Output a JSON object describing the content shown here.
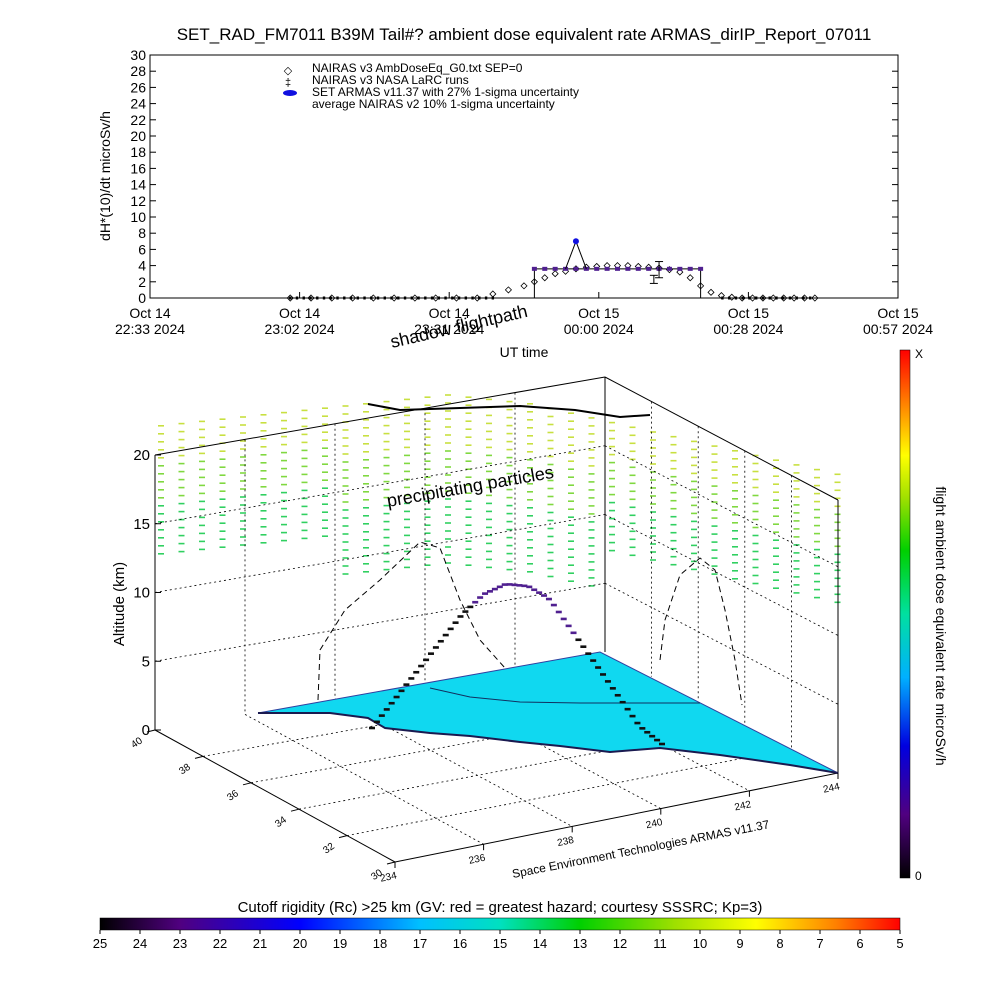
{
  "title": "SET_RAD_FM7011  B39M Tail#? ambient dose equivalent rate ARMAS_dirIP_Report_07011",
  "colors": {
    "armas": "#1010e0",
    "armas_fill": "#502090",
    "ocean": "#10d8f0",
    "aurora": "#70d040"
  },
  "chart_data": [
    {
      "type": "line",
      "title": "",
      "xlabel": "UT time",
      "ylabel": "dH*(10)/dt microSv/h",
      "ylim": [
        0,
        30
      ],
      "yticks": [
        "0",
        "2",
        "4",
        "6",
        "8",
        "10",
        "12",
        "14",
        "16",
        "18",
        "20",
        "22",
        "24",
        "26",
        "28",
        "30"
      ],
      "x_range_minutes": [
        0,
        144
      ],
      "x_tick_labels": [
        {
          "line1": "Oct 14",
          "line2": "22:33 2024"
        },
        {
          "line1": "Oct 14",
          "line2": "23:02 2024"
        },
        {
          "line1": "Oct 14",
          "line2": "23:31 2024"
        },
        {
          "line1": "Oct 15",
          "line2": "00:00 2024"
        },
        {
          "line1": "Oct 15",
          "line2": "00:28 2024"
        },
        {
          "line1": "Oct 15",
          "line2": "00:57 2024"
        }
      ],
      "legend": [
        {
          "symbol": "◇",
          "label": "NAIRAS v3 AmbDoseEq_G0.txt SEP=0"
        },
        {
          "symbol": "‡",
          "label": "NAIRAS v3 NASA LaRC runs"
        },
        {
          "symbol": "●",
          "label": "SET ARMAS v11.37 with 27% 1-sigma uncertainty"
        },
        {
          "symbol": "",
          "label": "average NAIRAS v2 10% 1-sigma uncertainty"
        }
      ],
      "series": [
        {
          "name": "NAIRAS v3 AmbDoseEq_G0.txt SEP=0",
          "marker": "diamond",
          "x": [
            27,
            31,
            35,
            39,
            43,
            47,
            51,
            55,
            59,
            63,
            66,
            69,
            72,
            74,
            76,
            78,
            80,
            82,
            84,
            86,
            88,
            90,
            92,
            94,
            96,
            98,
            100,
            102,
            104,
            106,
            108,
            110,
            112,
            114,
            116,
            118,
            120,
            122,
            124,
            126,
            128
          ],
          "y": [
            0,
            0,
            0,
            0,
            0,
            0,
            0,
            0,
            0,
            0,
            0.5,
            1,
            1.5,
            2,
            2.5,
            3,
            3.3,
            3.6,
            3.8,
            3.9,
            4,
            4,
            4,
            3.9,
            3.8,
            3.7,
            3.5,
            3.2,
            2.5,
            1.5,
            0.7,
            0.3,
            0.1,
            0,
            0,
            0,
            0,
            0,
            0,
            0,
            0
          ]
        },
        {
          "name": "SET ARMAS v11.37 with 27% 1-sigma uncertainty",
          "marker": "dot",
          "x": [
            74,
            76,
            78,
            80,
            82,
            84,
            86,
            88,
            90,
            92,
            94,
            96,
            98,
            100,
            102,
            104,
            106
          ],
          "y": [
            3.6,
            3.6,
            3.6,
            3.6,
            3.6,
            3.6,
            3.6,
            3.6,
            3.6,
            3.6,
            3.6,
            3.6,
            3.6,
            3.6,
            3.6,
            3.6,
            3.6
          ],
          "peak": {
            "x": 82,
            "y": 7
          }
        },
        {
          "name": "NAIRAS v3 NASA LaRC runs",
          "marker": "errorbar",
          "x": [
            97,
            98
          ],
          "y": [
            2.3,
            3.5
          ],
          "err": [
            0.5,
            1
          ]
        }
      ]
    },
    {
      "type": "scatter",
      "title": "",
      "zlabel": "Altitude (km)",
      "zticks": [
        "0",
        "5",
        "10",
        "15",
        "20"
      ],
      "zlim": [
        0,
        20
      ],
      "lat_ticks": [
        "30",
        "32",
        "34",
        "36",
        "38",
        "40"
      ],
      "lon_ticks": [
        "234",
        "236",
        "238",
        "240",
        "242",
        "244"
      ],
      "annotations": [
        "shadow flightpath",
        "precipitating particles"
      ],
      "credit": "Space Environment Technologies ARMAS v11.37",
      "flight_profile_km": [
        0,
        2,
        4,
        6,
        8,
        9.5,
        10.2,
        10,
        9,
        7,
        5,
        3,
        1,
        0
      ],
      "colorbar_right": {
        "label": "flight ambient dose equivalent rate microSv/h",
        "top_label": "X",
        "bottom_label": "0"
      },
      "colorbar_bottom": {
        "label": "Cutoff rigidity (Rc) >25 km (GV: red = greatest hazard; courtesy SSSRC; Kp=3)",
        "ticks": [
          "25",
          "24",
          "23",
          "22",
          "21",
          "20",
          "19",
          "18",
          "17",
          "16",
          "15",
          "14",
          "13",
          "12",
          "11",
          "10",
          "9",
          "8",
          "7",
          "6",
          "5"
        ]
      }
    }
  ]
}
